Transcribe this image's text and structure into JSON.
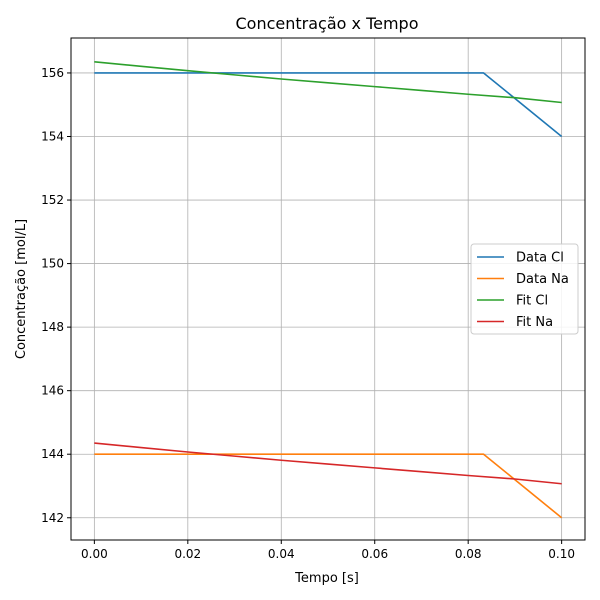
{
  "chart_data": {
    "type": "line",
    "title": "Concentração x Tempo",
    "xlabel": "Tempo [s]",
    "ylabel": "Concentração [mol/L]",
    "xlim": [
      -0.005,
      0.105
    ],
    "ylim": [
      141.3,
      157.1
    ],
    "xticks": [
      0.0,
      0.02,
      0.04,
      0.06,
      0.08,
      0.1
    ],
    "xtick_labels": [
      "0.00",
      "0.02",
      "0.04",
      "0.06",
      "0.08",
      "0.10"
    ],
    "yticks": [
      142,
      144,
      146,
      148,
      150,
      152,
      154,
      156
    ],
    "ytick_labels": [
      "142",
      "144",
      "146",
      "148",
      "150",
      "152",
      "154",
      "156"
    ],
    "grid": true,
    "legend_position": "center-right",
    "series": [
      {
        "name": "Data Cl",
        "color": "#1f77b4",
        "x": [
          0.0,
          0.0833,
          0.1
        ],
        "y": [
          156.0,
          156.0,
          154.0
        ]
      },
      {
        "name": "Data Na",
        "color": "#ff7f0e",
        "x": [
          0.0,
          0.0833,
          0.1
        ],
        "y": [
          144.0,
          144.0,
          142.0
        ]
      },
      {
        "name": "Fit Cl",
        "color": "#2ca02c",
        "x": [
          0.0,
          0.01,
          0.02,
          0.03,
          0.04,
          0.05,
          0.06,
          0.07,
          0.08,
          0.09,
          0.1
        ],
        "y": [
          156.35,
          156.21,
          156.07,
          155.94,
          155.81,
          155.69,
          155.57,
          155.45,
          155.33,
          155.22,
          155.07
        ]
      },
      {
        "name": "Fit Na",
        "color": "#d62728",
        "x": [
          0.0,
          0.01,
          0.02,
          0.03,
          0.04,
          0.05,
          0.06,
          0.07,
          0.08,
          0.09,
          0.1
        ],
        "y": [
          144.35,
          144.21,
          144.07,
          143.94,
          143.81,
          143.69,
          143.57,
          143.45,
          143.33,
          143.22,
          143.07
        ]
      }
    ]
  }
}
